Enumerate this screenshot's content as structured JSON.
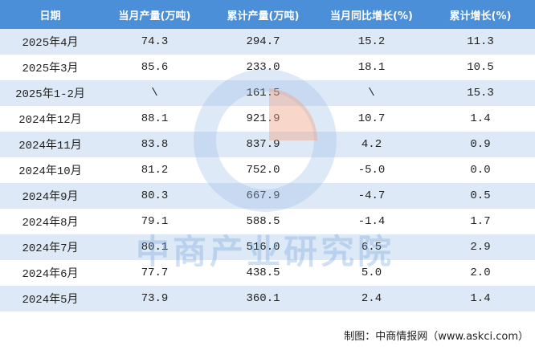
{
  "table": {
    "header": [
      "日期",
      "当月产量(万吨)",
      "累计产量(万吨)",
      "当月同比增长(%)",
      "累计增长(%)"
    ],
    "rows": [
      [
        "2025年4月",
        "74.3",
        "294.7",
        "15.2",
        "11.3"
      ],
      [
        "2025年3月",
        "85.6",
        "233.0",
        "18.1",
        "10.5"
      ],
      [
        "2025年1-2月",
        "\\",
        "161.5",
        "\\",
        "15.3"
      ],
      [
        "2024年12月",
        "88.1",
        "921.9",
        "10.7",
        "1.4"
      ],
      [
        "2024年11月",
        "83.8",
        "837.9",
        "4.2",
        "0.9"
      ],
      [
        "2024年10月",
        "81.2",
        "752.0",
        "-5.0",
        "0.0"
      ],
      [
        "2024年9月",
        "80.3",
        "667.9",
        "-4.7",
        "0.5"
      ],
      [
        "2024年8月",
        "79.1",
        "588.5",
        "-1.4",
        "1.7"
      ],
      [
        "2024年7月",
        "80.1",
        "516.0",
        "6.5",
        "2.9"
      ],
      [
        "2024年6月",
        "77.7",
        "438.5",
        "5.0",
        "2.0"
      ],
      [
        "2024年5月",
        "73.9",
        "360.1",
        "2.4",
        "1.4"
      ]
    ]
  },
  "watermark": "中商产业研究院",
  "footer": "制图：中商情报网（www.askci.com）"
}
